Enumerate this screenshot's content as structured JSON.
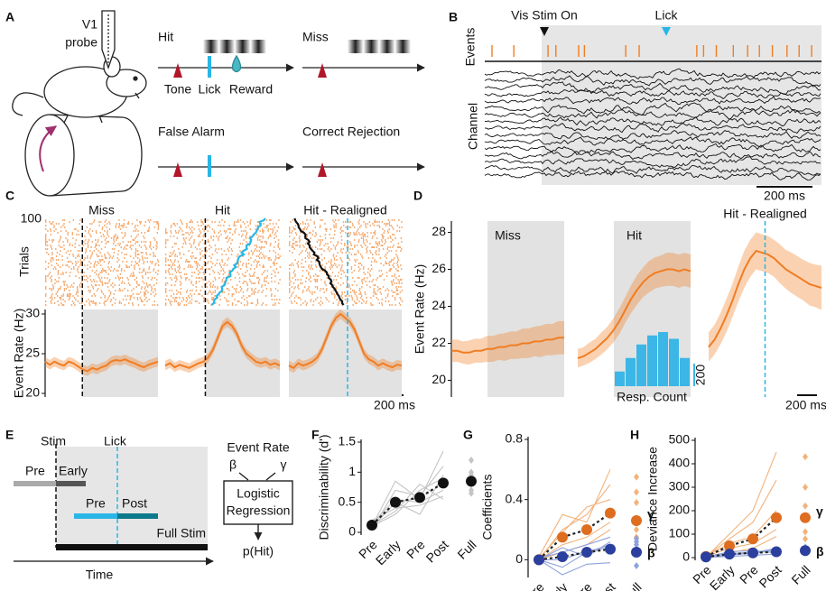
{
  "panels": [
    "A",
    "B",
    "C",
    "D",
    "E",
    "F",
    "G",
    "H"
  ],
  "panel_a": {
    "probe": [
      "V1",
      "probe"
    ],
    "hit": "Hit",
    "miss": "Miss",
    "tone": "Tone",
    "lick": "Lick",
    "reward": "Reward",
    "false_alarm": "False Alarm",
    "correct_rejection": "Correct Rejection"
  },
  "panel_b": {
    "stim_on": "Vis Stim On",
    "lick": "Lick",
    "events": "Events",
    "channel": "Channel",
    "scale": "200 ms"
  },
  "panel_c": {
    "trials": "Trials",
    "trials_tick": 100,
    "scale": "200 ms"
  },
  "panel_d": {
    "scale": "200 ms"
  },
  "panel_e": {
    "stim": "Stim",
    "lick": "Lick",
    "pre_early": "Pre",
    "early": "Early",
    "pre_late": "Pre",
    "post": "Post",
    "full": "Full Stim",
    "time": "Time",
    "event_rate": "Event Rate",
    "beta": "β",
    "gamma": "γ",
    "model": [
      "Logistic",
      "Regression"
    ],
    "output": "p(Hit)"
  },
  "chart_data": [
    {
      "type": "line",
      "title": "Miss",
      "ylabel": "Event Rate (Hz)",
      "ylim": [
        20,
        30
      ],
      "yticks": [
        20,
        25,
        30
      ],
      "color": "#f07d23",
      "values": [
        24,
        23.6,
        24,
        23.7,
        23.5,
        24,
        23.8,
        23.4,
        23,
        22.8,
        23.2,
        23,
        23.3,
        23.5,
        24,
        24.2,
        24.1,
        24.3,
        24,
        23.8,
        23.5,
        23.3,
        23.6,
        23.8,
        24
      ],
      "error": 0.6
    },
    {
      "type": "line",
      "title": "Hit",
      "ylim": [
        20,
        30
      ],
      "color": "#f07d23",
      "values": [
        23.5,
        23.8,
        23.3,
        23.6,
        23.4,
        23.2,
        23.5,
        23.8,
        24,
        24.5,
        25.5,
        27,
        28.5,
        29,
        28.5,
        27.5,
        26,
        25,
        24.5,
        24,
        23.8,
        24,
        23.6,
        23.8,
        23.5
      ],
      "error": 0.6
    },
    {
      "type": "line",
      "title": "Hit - Realigned",
      "ylim": [
        20,
        30
      ],
      "color": "#f07d23",
      "values": [
        23.5,
        23.2,
        23.8,
        23.5,
        23.7,
        24,
        24.5,
        25.5,
        27,
        28.5,
        29.5,
        30,
        29.5,
        29,
        28,
        26.5,
        25,
        24.3,
        24,
        23.5,
        23.8,
        23.5,
        23.3,
        23.6,
        23.5
      ],
      "error": 0.6
    },
    {
      "type": "line",
      "title": "Miss",
      "ylabel": "Event Rate (Hz)",
      "ylim": [
        19,
        29
      ],
      "yticks": [
        20,
        22,
        24,
        26,
        28
      ],
      "color": "#f07d23",
      "values": [
        21.6,
        21.6,
        21.5,
        21.5,
        21.6,
        21.6,
        21.7,
        21.7,
        21.8,
        21.8,
        21.9,
        21.9,
        22,
        22,
        22.1,
        22.1,
        22.2,
        22.2,
        22.3,
        22.3
      ],
      "errors": [
        0.6,
        0.6,
        0.6,
        0.65,
        0.65,
        0.65,
        0.7,
        0.7,
        0.7,
        0.75,
        0.75,
        0.75,
        0.8,
        0.8,
        0.8,
        0.85,
        0.85,
        0.85,
        0.9,
        0.9
      ]
    },
    {
      "type": "line",
      "title": "Hit",
      "ylim": [
        19,
        29
      ],
      "color": "#f07d23",
      "values": [
        21.2,
        21.3,
        21.5,
        21.7,
        22,
        22.3,
        22.7,
        23.2,
        23.8,
        24.4,
        24.9,
        25.3,
        25.6,
        25.8,
        25.9,
        26,
        26,
        25.9,
        26,
        25.9
      ],
      "errors": [
        0.5,
        0.5,
        0.55,
        0.55,
        0.6,
        0.6,
        0.65,
        0.7,
        0.7,
        0.75,
        0.8,
        0.8,
        0.85,
        0.85,
        0.85,
        0.9,
        0.9,
        0.9,
        0.9,
        0.9
      ],
      "histogram": {
        "name": "Resp. Count",
        "color": "#3bb6e6",
        "values": [
          130,
          250,
          370,
          450,
          480,
          420,
          250
        ],
        "scale": 200
      }
    },
    {
      "type": "line",
      "title": "Hit - Realigned",
      "ylim": [
        19,
        29
      ],
      "color": "#f07d23",
      "values": [
        21.8,
        22.2,
        22.8,
        23.5,
        24.3,
        25.2,
        26,
        26.6,
        27,
        26.9,
        26.8,
        26.6,
        26.3,
        26,
        25.8,
        25.6,
        25.4,
        25.2,
        25.1,
        25
      ],
      "errors": [
        0.8,
        0.8,
        0.85,
        0.9,
        0.9,
        0.95,
        1,
        1,
        1,
        1,
        1,
        1,
        1.05,
        1.05,
        1.1,
        1.1,
        1.1,
        1.15,
        1.15,
        1.2
      ]
    },
    {
      "type": "line",
      "ylabel": "Discriminability (d')",
      "categories": [
        "Pre",
        "Early",
        "Pre",
        "Post",
        "Full"
      ],
      "category_colors": [
        "#aaaaaa",
        "#555555",
        "#29b6e6",
        "#0a7a8c",
        "#000000"
      ],
      "ylim": [
        0,
        1.5
      ],
      "yticks": [
        0,
        0.5,
        1,
        1.5
      ],
      "series": [
        {
          "color": "#111111",
          "subject_color": "#c4c4c4",
          "values": [
            0.12,
            0.5,
            0.58,
            0.82,
            0.85
          ],
          "subjects": [
            [
              0.1,
              0.3,
              0.7,
              0.9,
              0.95
            ],
            [
              0.15,
              0.55,
              0.5,
              0.7,
              0.8
            ],
            [
              0.05,
              0.7,
              0.6,
              1.1,
              1.2
            ],
            [
              0.2,
              0.4,
              0.45,
              0.6,
              0.65
            ],
            [
              0.1,
              0.85,
              0.55,
              1.35,
              1.0
            ],
            [
              0.12,
              0.35,
              0.8,
              0.55,
              0.7
            ],
            [
              0.08,
              0.5,
              0.3,
              0.95,
              0.9
            ]
          ]
        }
      ]
    },
    {
      "type": "line",
      "ylabel": "Coefficients",
      "categories": [
        "Pre",
        "Early",
        "Pre",
        "Post",
        "Full"
      ],
      "category_colors": [
        "#aaaaaa",
        "#555555",
        "#29b6e6",
        "#0a7a8c",
        "#000000"
      ],
      "ylim": [
        -0.1,
        0.8
      ],
      "yticks": [
        0,
        0.4,
        0.8
      ],
      "series": [
        {
          "name": "γ",
          "color": "#df6d1f",
          "subject_color": "#f2b27a",
          "values": [
            0,
            0.15,
            0.2,
            0.31,
            0.26
          ],
          "subjects": [
            [
              0,
              0.2,
              0.3,
              0.5,
              0.45
            ],
            [
              0,
              0.1,
              0.15,
              0.25,
              0.2
            ],
            [
              0.02,
              0.3,
              0.25,
              0.6,
              0.55
            ],
            [
              0,
              0.05,
              0.1,
              0.2,
              0.15
            ],
            [
              0.01,
              0.18,
              0.35,
              0.4,
              0.38
            ]
          ]
        },
        {
          "name": "β",
          "color": "#2b3f9e",
          "subject_color": "#8ea3dc",
          "values": [
            0,
            0.02,
            0.05,
            0.07,
            0.05
          ],
          "subjects": [
            [
              0,
              -0.05,
              0.05,
              0.1,
              0.1
            ],
            [
              0,
              0.08,
              0.02,
              0.12,
              0.12
            ],
            [
              0,
              -0.1,
              -0.03,
              -0.02,
              -0.04
            ],
            [
              0.01,
              0.05,
              0.1,
              0.15,
              0.14
            ],
            [
              0,
              0,
              0.06,
              0.08,
              0.06
            ]
          ]
        }
      ]
    },
    {
      "type": "line",
      "ylabel": "Deviance Increase",
      "categories": [
        "Pre",
        "Early",
        "Pre",
        "Post",
        "Full"
      ],
      "category_colors": [
        "#aaaaaa",
        "#555555",
        "#29b6e6",
        "#0a7a8c",
        "#000000"
      ],
      "ylim": [
        0,
        500
      ],
      "yticks": [
        0,
        100,
        200,
        300,
        400,
        500
      ],
      "series": [
        {
          "name": "γ",
          "color": "#df6d1f",
          "subject_color": "#f2b27a",
          "values": [
            5,
            50,
            80,
            170,
            170
          ],
          "subjects": [
            [
              3,
              80,
              150,
              330,
              300
            ],
            [
              5,
              40,
              60,
              120,
              110
            ],
            [
              2,
              100,
              200,
              450,
              430
            ],
            [
              4,
              20,
              40,
              90,
              80
            ],
            [
              6,
              60,
              90,
              200,
              220
            ]
          ]
        },
        {
          "name": "β",
          "color": "#2b3f9e",
          "subject_color": "#8ea3dc",
          "values": [
            3,
            15,
            20,
            25,
            30
          ],
          "subjects": [
            [
              2,
              10,
              20,
              40,
              45
            ],
            [
              3,
              25,
              30,
              20,
              25
            ],
            [
              1,
              5,
              10,
              15,
              20
            ],
            [
              4,
              15,
              25,
              30,
              35
            ],
            [
              2,
              20,
              15,
              35,
              40
            ]
          ]
        }
      ]
    }
  ]
}
